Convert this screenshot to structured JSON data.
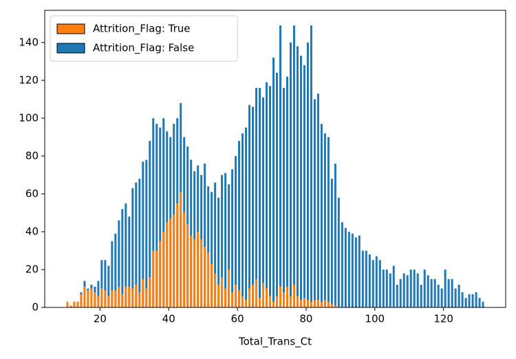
{
  "chart_data": {
    "type": "histogram",
    "xlabel": "Total_Trans_Ct",
    "bins": [
      10,
      11,
      12,
      13,
      14,
      15,
      16,
      17,
      18,
      19,
      20,
      21,
      22,
      23,
      24,
      25,
      26,
      27,
      28,
      29,
      30,
      31,
      32,
      33,
      34,
      35,
      36,
      37,
      38,
      39,
      40,
      41,
      42,
      43,
      44,
      45,
      46,
      47,
      48,
      49,
      50,
      51,
      52,
      53,
      54,
      55,
      56,
      57,
      58,
      59,
      60,
      61,
      62,
      63,
      64,
      65,
      66,
      67,
      68,
      69,
      70,
      71,
      72,
      73,
      74,
      75,
      76,
      77,
      78,
      79,
      80,
      81,
      82,
      83,
      84,
      85,
      86,
      87,
      88,
      89,
      90,
      91,
      92,
      93,
      94,
      95,
      96,
      97,
      98,
      99,
      100,
      101,
      102,
      103,
      104,
      105,
      106,
      107,
      108,
      109,
      110,
      111,
      112,
      113,
      114,
      115,
      116,
      117,
      118,
      119,
      120,
      121,
      122,
      123,
      124,
      125,
      126,
      127,
      128,
      129,
      130,
      131,
      132
    ],
    "series": [
      {
        "name": "Attrition_Flag: True",
        "color": "#ff7f0e",
        "values": [
          3,
          1,
          3,
          3,
          7,
          11,
          9,
          10,
          8,
          6,
          10,
          9,
          6,
          9,
          9,
          11,
          7,
          11,
          11,
          10,
          12,
          8,
          15,
          10,
          16,
          30,
          30,
          35,
          40,
          45,
          47,
          49,
          55,
          61,
          50,
          44,
          38,
          36,
          40,
          36,
          32,
          29,
          23,
          18,
          12,
          16,
          10,
          20,
          8,
          12,
          9,
          6,
          4,
          10,
          12,
          15,
          5,
          13,
          10,
          6,
          3,
          6,
          11,
          8,
          11,
          6,
          12,
          6,
          4,
          5,
          4,
          3,
          4,
          4,
          3,
          4,
          3,
          2,
          1,
          0,
          0,
          0,
          0,
          0,
          0,
          0,
          0,
          0,
          0,
          0,
          0,
          0,
          0,
          0,
          0,
          0,
          0,
          0,
          0,
          0,
          0,
          0,
          0,
          0,
          0,
          0,
          0,
          0,
          0,
          0,
          0,
          0,
          0,
          0,
          0,
          0,
          0,
          0,
          0,
          0,
          0,
          0
        ]
      },
      {
        "name": "Attrition_Flag: False",
        "color": "#1f77b4",
        "values": [
          0,
          0,
          3,
          3,
          8,
          14,
          10,
          12,
          11,
          14,
          25,
          25,
          22,
          35,
          39,
          46,
          52,
          55,
          48,
          63,
          66,
          68,
          77,
          78,
          88,
          100,
          97,
          95,
          100,
          93,
          90,
          97,
          100,
          108,
          90,
          85,
          78,
          72,
          75,
          70,
          76,
          64,
          61,
          66,
          58,
          70,
          71,
          65,
          73,
          80,
          88,
          92,
          95,
          107,
          106,
          116,
          116,
          111,
          119,
          117,
          132,
          124,
          149,
          116,
          122,
          140,
          149,
          138,
          133,
          128,
          140,
          149,
          110,
          113,
          97,
          92,
          90,
          68,
          76,
          58,
          45,
          42,
          40,
          39,
          37,
          38,
          30,
          30,
          28,
          25,
          27,
          25,
          20,
          20,
          18,
          22,
          12,
          15,
          18,
          17,
          20,
          20,
          18,
          12,
          20,
          17,
          15,
          15,
          12,
          10,
          20,
          15,
          15,
          10,
          12,
          8,
          5,
          7,
          7,
          8,
          5,
          3
        ]
      }
    ],
    "xlim": [
      3.9,
      138.1
    ],
    "xticks": [
      20,
      40,
      60,
      80,
      100,
      120
    ],
    "ylim": [
      0,
      157
    ],
    "yticks": [
      0,
      20,
      40,
      60,
      80,
      100,
      120,
      140
    ],
    "grid": false,
    "legend": "upper left"
  }
}
